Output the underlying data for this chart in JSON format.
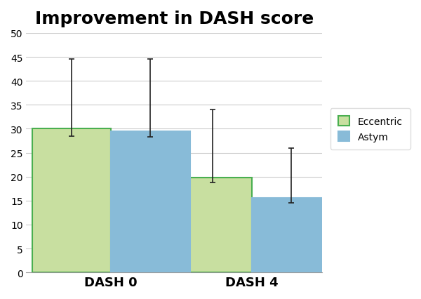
{
  "title": "Improvement in DASH score",
  "title_fontsize": 18,
  "title_fontweight": "bold",
  "categories": [
    "DASH 0",
    "DASH 4"
  ],
  "series": [
    {
      "label": "Eccentric",
      "values": [
        30.0,
        19.8
      ],
      "errors_up": [
        14.5,
        14.2
      ],
      "errors_down": [
        1.5,
        1.0
      ],
      "color": "#c8dfa0",
      "edgecolor": "#4aaf50"
    },
    {
      "label": "Astym",
      "values": [
        29.5,
        15.5
      ],
      "errors_up": [
        15.0,
        10.5
      ],
      "errors_down": [
        1.2,
        1.0
      ],
      "color": "#88bbd8",
      "edgecolor": "#88bbd8"
    }
  ],
  "ylim": [
    0,
    50
  ],
  "yticks": [
    0,
    5,
    10,
    15,
    20,
    25,
    30,
    35,
    40,
    45,
    50
  ],
  "xlabel_fontsize": 13,
  "xlabel_fontweight": "bold",
  "bar_width": 0.28,
  "legend_fontsize": 10,
  "grid_color": "#cccccc",
  "background_color": "#ffffff",
  "error_capsize": 3,
  "error_linewidth": 1.2,
  "error_color": "#222222"
}
